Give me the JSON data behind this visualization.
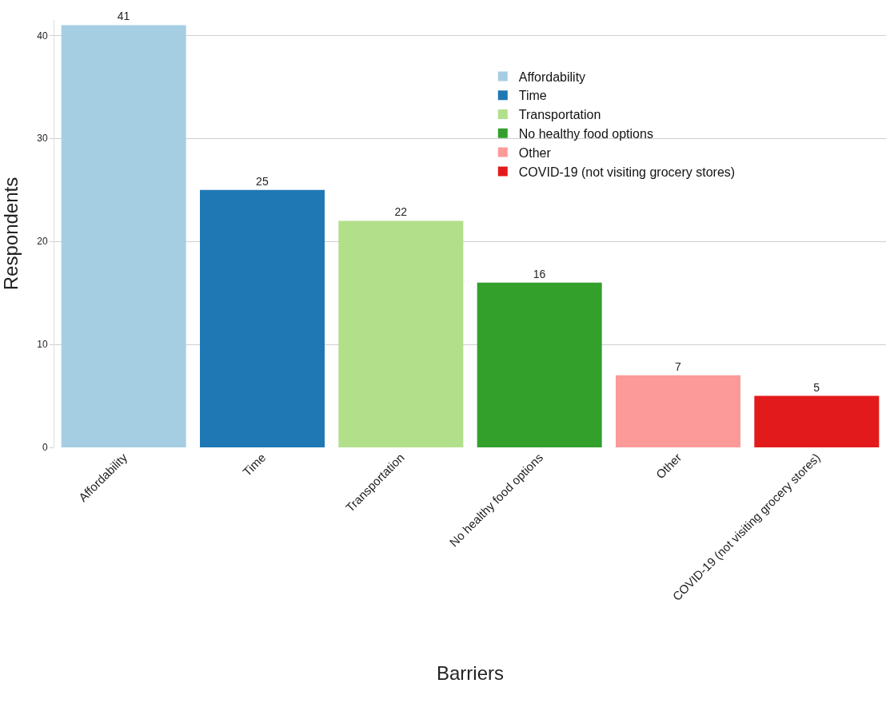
{
  "chart_data": {
    "type": "bar",
    "xlabel": "Barriers",
    "ylabel": "Respondents",
    "categories": [
      "Affordability",
      "Time",
      "Transportation",
      "No healthy food options",
      "Other",
      "COVID-19 (not visiting grocery stores)"
    ],
    "series": [
      {
        "name": "Affordability",
        "color": "#a6cee3",
        "values": [
          41,
          null,
          null,
          null,
          null,
          null
        ]
      },
      {
        "name": "Time",
        "color": "#1f78b4",
        "values": [
          null,
          25,
          null,
          null,
          null,
          null
        ]
      },
      {
        "name": "Transportation",
        "color": "#b2df8a",
        "values": [
          null,
          null,
          22,
          null,
          null,
          null
        ]
      },
      {
        "name": "No healthy food options",
        "color": "#33a02c",
        "values": [
          null,
          null,
          null,
          16,
          null,
          null
        ]
      },
      {
        "name": "Other",
        "color": "#fb9a99",
        "values": [
          null,
          null,
          null,
          null,
          7,
          null
        ]
      },
      {
        "name": "COVID-19 (not visiting grocery stores)",
        "color": "#e31a1c",
        "values": [
          null,
          null,
          null,
          null,
          null,
          5
        ]
      }
    ],
    "ylim": [
      0,
      41.5
    ],
    "yticks": [
      0,
      10,
      20,
      30,
      40
    ],
    "grid": "y",
    "legend": "top right",
    "data_labels": true
  }
}
